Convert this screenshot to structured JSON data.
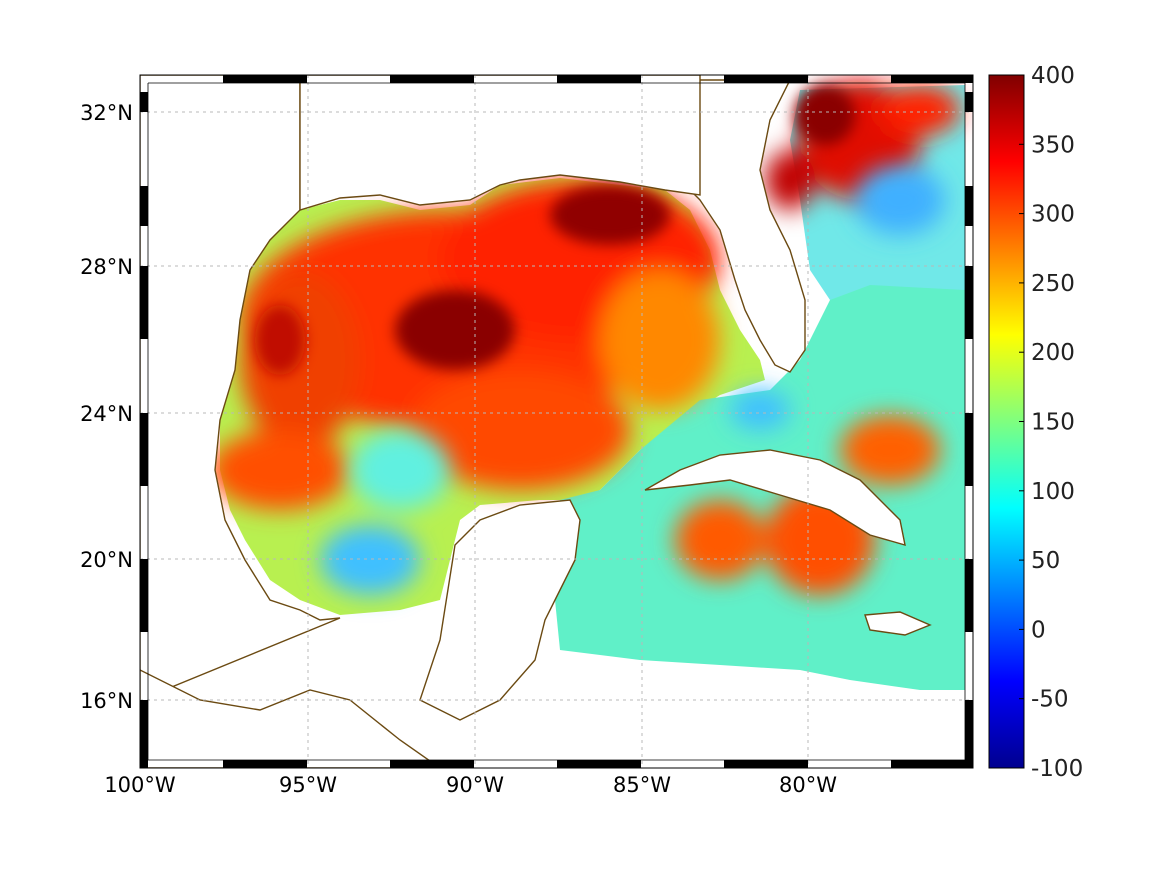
{
  "map": {
    "lon_labels": [
      "100°W",
      "95°W",
      "90°W",
      "85°W",
      "80°W"
    ],
    "lat_labels": [
      "32°N",
      "28°N",
      "24°N",
      "20°N",
      "16°N"
    ],
    "coastline_color": "#6b4a12",
    "grid": true
  },
  "colorbar": {
    "colormap": "jet",
    "min": -100,
    "max": 400,
    "tick_labels": [
      "400",
      "350",
      "300",
      "250",
      "200",
      "150",
      "100",
      "50",
      "0",
      "-50",
      "-100"
    ]
  }
}
